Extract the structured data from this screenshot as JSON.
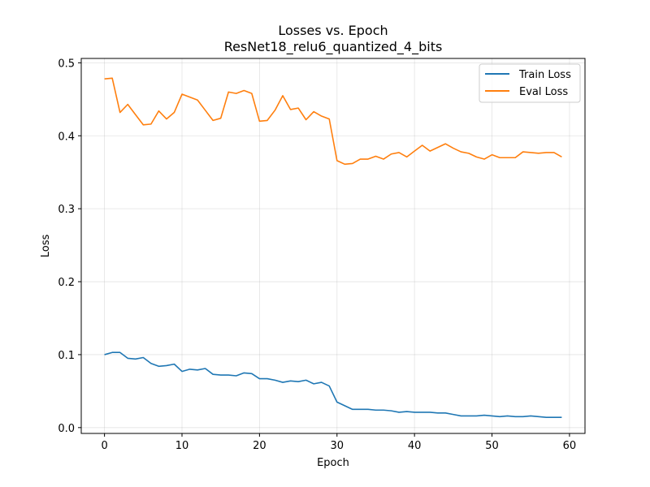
{
  "chart_data": {
    "type": "line",
    "title": "Losses vs. Epoch",
    "subtitle": "ResNet18_relu6_quantized_4_bits",
    "xlabel": "Epoch",
    "ylabel": "Loss",
    "xlim": [
      -3,
      62
    ],
    "ylim": [
      -0.008,
      0.506
    ],
    "xticks": [
      0,
      10,
      20,
      30,
      40,
      50,
      60
    ],
    "yticks": [
      0.0,
      0.1,
      0.2,
      0.3,
      0.4,
      0.5
    ],
    "xtick_labels": [
      "0",
      "10",
      "20",
      "30",
      "40",
      "50",
      "60"
    ],
    "ytick_labels": [
      "0.0",
      "0.1",
      "0.2",
      "0.3",
      "0.4",
      "0.5"
    ],
    "grid": true,
    "legend_position": "top-right",
    "x": [
      0,
      1,
      2,
      3,
      4,
      5,
      6,
      7,
      8,
      9,
      10,
      11,
      12,
      13,
      14,
      15,
      16,
      17,
      18,
      19,
      20,
      21,
      22,
      23,
      24,
      25,
      26,
      27,
      28,
      29,
      30,
      31,
      32,
      33,
      34,
      35,
      36,
      37,
      38,
      39,
      40,
      41,
      42,
      43,
      44,
      45,
      46,
      47,
      48,
      49,
      50,
      51,
      52,
      53,
      54,
      55,
      56,
      57,
      58,
      59
    ],
    "series": [
      {
        "name": "Train Loss",
        "color": "#1f77b4",
        "values": [
          0.1,
          0.103,
          0.103,
          0.095,
          0.094,
          0.096,
          0.088,
          0.084,
          0.085,
          0.087,
          0.077,
          0.08,
          0.079,
          0.081,
          0.073,
          0.072,
          0.072,
          0.071,
          0.075,
          0.074,
          0.067,
          0.067,
          0.065,
          0.062,
          0.064,
          0.063,
          0.065,
          0.06,
          0.062,
          0.057,
          0.035,
          0.03,
          0.025,
          0.025,
          0.025,
          0.024,
          0.024,
          0.023,
          0.021,
          0.022,
          0.021,
          0.021,
          0.021,
          0.02,
          0.02,
          0.018,
          0.016,
          0.016,
          0.016,
          0.017,
          0.016,
          0.015,
          0.016,
          0.015,
          0.015,
          0.016,
          0.015,
          0.014,
          0.014,
          0.014
        ]
      },
      {
        "name": "Eval Loss",
        "color": "#ff7f0e",
        "values": [
          0.478,
          0.479,
          0.432,
          0.443,
          0.429,
          0.415,
          0.416,
          0.434,
          0.423,
          0.432,
          0.457,
          0.453,
          0.449,
          0.435,
          0.421,
          0.424,
          0.46,
          0.458,
          0.462,
          0.458,
          0.42,
          0.421,
          0.435,
          0.455,
          0.436,
          0.438,
          0.422,
          0.433,
          0.427,
          0.423,
          0.366,
          0.361,
          0.362,
          0.368,
          0.368,
          0.372,
          0.368,
          0.375,
          0.377,
          0.371,
          0.379,
          0.387,
          0.379,
          0.384,
          0.389,
          0.383,
          0.378,
          0.376,
          0.371,
          0.368,
          0.374,
          0.37,
          0.37,
          0.37,
          0.378,
          0.377,
          0.376,
          0.377,
          0.377,
          0.371
        ]
      }
    ]
  }
}
